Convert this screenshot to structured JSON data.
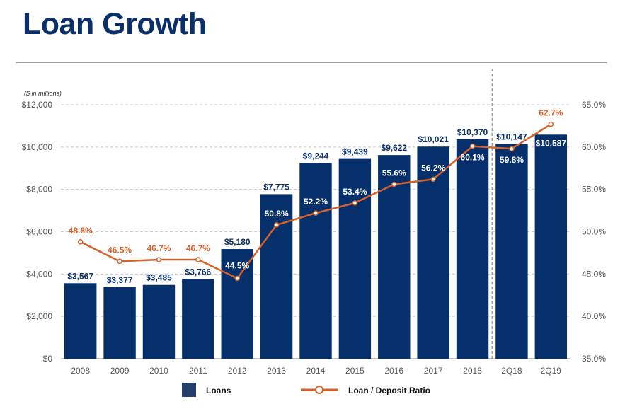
{
  "page": {
    "title": "Loan Growth"
  },
  "colors": {
    "bar": "#06306b",
    "line": "#d4622a",
    "title": "#0b2f6b"
  },
  "chart_data": {
    "type": "bar+line",
    "title": "Loan Growth",
    "unit_note": "($ in millions)",
    "categories": [
      "2008",
      "2009",
      "2010",
      "2011",
      "2012",
      "2013",
      "2014",
      "2015",
      "2016",
      "2017",
      "2018",
      "2Q18",
      "2Q19"
    ],
    "series": [
      {
        "name": "Loans",
        "type": "bar",
        "axis": "left",
        "values": [
          3567,
          3377,
          3485,
          3766,
          5180,
          7775,
          9244,
          9439,
          9622,
          10021,
          10370,
          10147,
          10587
        ],
        "labels": [
          "$3,567",
          "$3,377",
          "$3,485",
          "$3,766",
          "$5,180",
          "$7,775",
          "$9,244",
          "$9,439",
          "$9,622",
          "$10,021",
          "$10,370",
          "$10,147",
          "$10,587"
        ]
      },
      {
        "name": "Loan / Deposit Ratio",
        "type": "line",
        "axis": "right",
        "values": [
          48.8,
          46.5,
          46.7,
          46.7,
          44.5,
          50.8,
          52.2,
          53.4,
          55.6,
          56.2,
          60.1,
          59.8,
          62.7
        ],
        "labels": [
          "48.8%",
          "46.5%",
          "46.7%",
          "46.7%",
          "44.5%",
          "50.8%",
          "52.2%",
          "53.4%",
          "55.6%",
          "56.2%",
          "60.1%",
          "59.8%",
          "62.7%"
        ]
      }
    ],
    "left_axis": {
      "range": [
        0,
        12000
      ],
      "ticks": [
        "$0",
        "$2,000",
        "$4,000",
        "$6,000",
        "$8,000",
        "$10,000",
        "$12,000"
      ]
    },
    "right_axis": {
      "range": [
        35,
        65
      ],
      "ticks": [
        "35.0%",
        "40.0%",
        "45.0%",
        "50.0%",
        "55.0%",
        "60.0%",
        "65.0%"
      ]
    },
    "grid": true,
    "divider_after": "2018",
    "legend": {
      "placement": "bottom",
      "items": [
        "Loans",
        "Loan / Deposit Ratio"
      ]
    }
  }
}
